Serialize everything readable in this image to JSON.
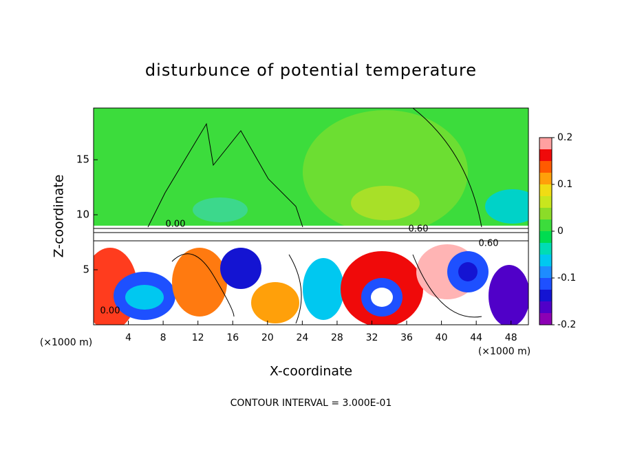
{
  "chart_data": {
    "type": "contour",
    "title": "disturbunce of potential temperature",
    "x_label": "X-coordinate",
    "y_label": "Z-coordinate",
    "x_unit_label": "(×1000 m)",
    "footnote": "CONTOUR INTERVAL = 3.000E-01",
    "xlim": [
      0,
      50
    ],
    "ylim": [
      0,
      19.7
    ],
    "xticks": [
      4,
      8,
      12,
      16,
      20,
      24,
      28,
      32,
      36,
      40,
      44,
      48
    ],
    "yticks": [
      5,
      10,
      15
    ],
    "contour_labels": [
      {
        "value": 0,
        "label": "0.00"
      },
      {
        "value": 0.6,
        "label": "0.60"
      }
    ],
    "colorbar": {
      "lim": [
        -0.2,
        0.2
      ],
      "ticks": [
        -0.2,
        -0.1,
        0,
        0.1,
        0.2
      ],
      "levels": [
        -0.2,
        -0.175,
        -0.15,
        -0.125,
        -0.1,
        -0.075,
        -0.05,
        -0.025,
        0,
        0.025,
        0.05,
        0.075,
        0.1,
        0.125,
        0.15,
        0.175,
        0.2
      ],
      "colors": [
        "#8c00b4",
        "#5000c8",
        "#1414d2",
        "#1e50ff",
        "#1e8cff",
        "#00c8f0",
        "#00dcb4",
        "#00dc50",
        "#3cdc3c",
        "#8cdc28",
        "#c8e61e",
        "#f0dc14",
        "#ffa00a",
        "#ff5a00",
        "#f00a0a",
        "#ffa0a0"
      ]
    }
  }
}
